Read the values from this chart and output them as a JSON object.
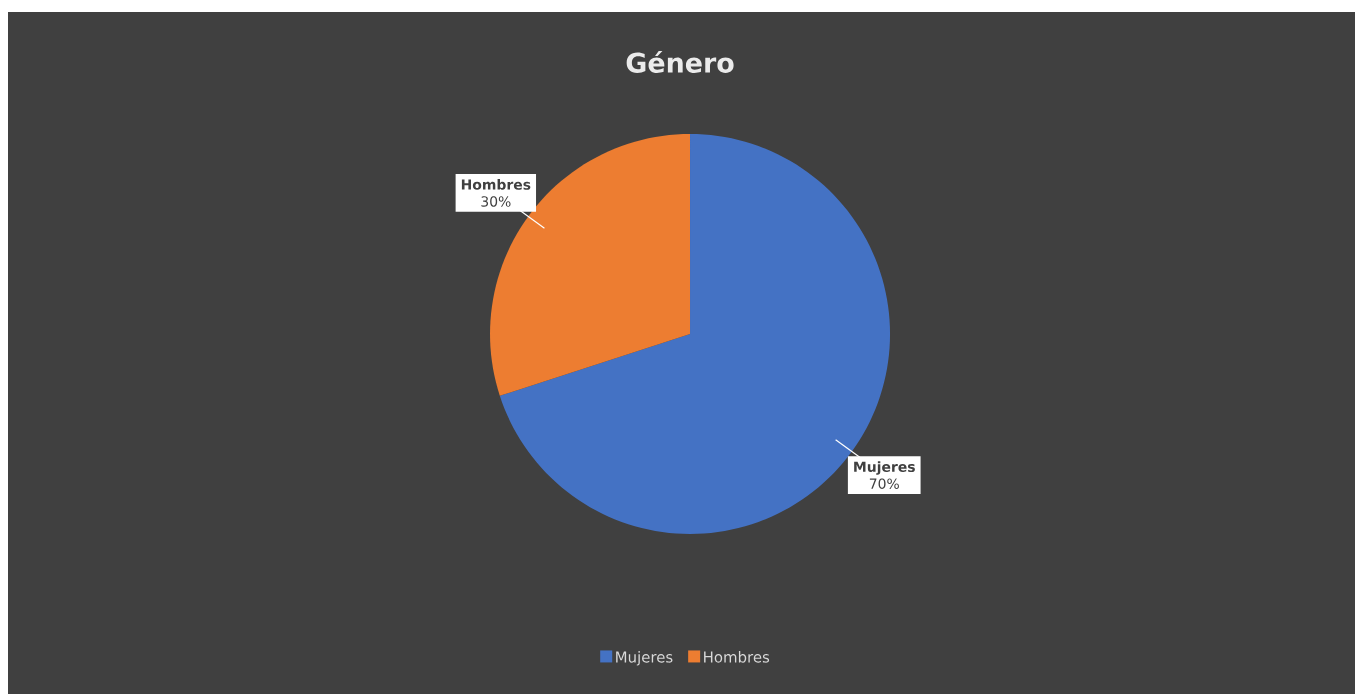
{
  "chart_data": {
    "type": "pie",
    "title": "Género",
    "categories": [
      "Mujeres",
      "Hombres"
    ],
    "values": [
      70,
      30
    ],
    "colors": [
      "#4472c4",
      "#ed7d31"
    ],
    "value_labels": [
      "70%",
      "30%"
    ],
    "legend": "bottom"
  }
}
